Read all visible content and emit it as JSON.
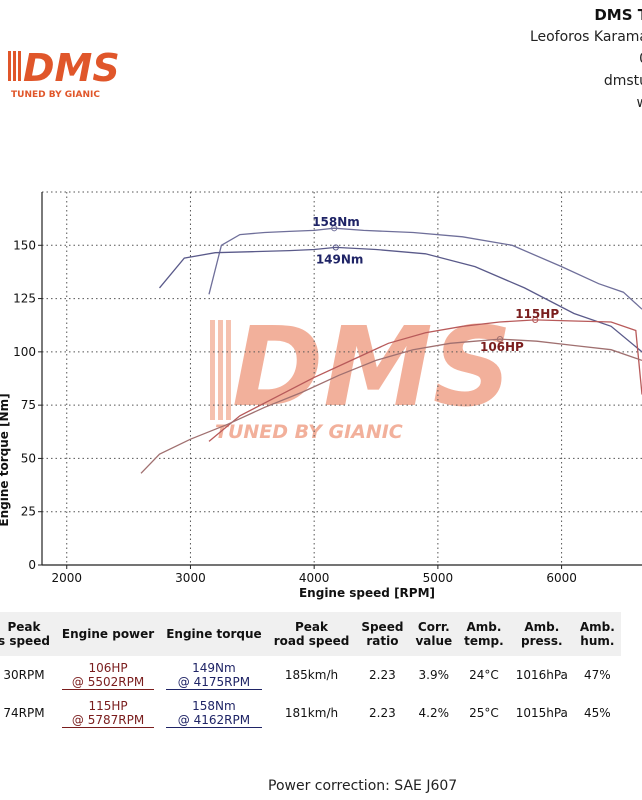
{
  "header": {
    "company_name": "DMS T",
    "lines": [
      "Leoforos Karama",
      "0",
      "dmstu",
      "w"
    ]
  },
  "logo": {
    "text": "DMS",
    "tagline": "TUNED BY GIANIC",
    "color": "#e0562a"
  },
  "watermark": {
    "text": "DMS",
    "tagline": "TUNED BY GIANIC",
    "color": "#f0a38a"
  },
  "chart_data": {
    "type": "line",
    "xlabel": "Engine speed [RPM]",
    "ylabel": "Engine torque [Nm]",
    "xlim": [
      1800,
      6650
    ],
    "ylim": [
      0,
      175
    ],
    "xticks": [
      2000,
      3000,
      4000,
      5000,
      6000
    ],
    "yticks": [
      0,
      25,
      50,
      75,
      100,
      125,
      150
    ],
    "grid": true,
    "series": [
      {
        "kind": "torque",
        "color": "#6f6f9a",
        "peak_label": "158Nm",
        "peak": [
          4162,
          158
        ],
        "points": [
          [
            3150,
            127
          ],
          [
            3250,
            150
          ],
          [
            3400,
            155
          ],
          [
            3600,
            156
          ],
          [
            3800,
            156.5
          ],
          [
            4000,
            157
          ],
          [
            4162,
            158
          ],
          [
            4400,
            157
          ],
          [
            4800,
            156
          ],
          [
            5200,
            154
          ],
          [
            5600,
            150
          ],
          [
            6000,
            140
          ],
          [
            6300,
            132
          ],
          [
            6500,
            128
          ],
          [
            6650,
            120
          ]
        ]
      },
      {
        "kind": "torque",
        "color": "#5a5a8a",
        "peak_label": "149Nm",
        "peak": [
          4175,
          149
        ],
        "points": [
          [
            2750,
            130
          ],
          [
            2950,
            144
          ],
          [
            3200,
            146.5
          ],
          [
            3500,
            147
          ],
          [
            3800,
            147.5
          ],
          [
            4000,
            148
          ],
          [
            4175,
            149
          ],
          [
            4500,
            148
          ],
          [
            4900,
            146
          ],
          [
            5300,
            140
          ],
          [
            5700,
            130
          ],
          [
            6100,
            118
          ],
          [
            6400,
            112
          ],
          [
            6650,
            100
          ]
        ]
      },
      {
        "kind": "power",
        "color": "#b85a5a",
        "peak_label": "115HP",
        "peak": [
          5787,
          115
        ],
        "points": [
          [
            3150,
            58
          ],
          [
            3400,
            70
          ],
          [
            3700,
            79
          ],
          [
            4000,
            88
          ],
          [
            4300,
            96
          ],
          [
            4600,
            104
          ],
          [
            4900,
            109
          ],
          [
            5200,
            112
          ],
          [
            5500,
            114
          ],
          [
            5787,
            115
          ],
          [
            6100,
            114.5
          ],
          [
            6400,
            114
          ],
          [
            6600,
            110
          ],
          [
            6650,
            80
          ]
        ]
      },
      {
        "kind": "power",
        "color": "#a07070",
        "peak_label": "106HP",
        "peak": [
          5502,
          106
        ],
        "points": [
          [
            2600,
            43
          ],
          [
            2750,
            52
          ],
          [
            3000,
            59
          ],
          [
            3300,
            66
          ],
          [
            3600,
            74
          ],
          [
            3900,
            81
          ],
          [
            4200,
            89
          ],
          [
            4500,
            96
          ],
          [
            4800,
            101
          ],
          [
            5100,
            104
          ],
          [
            5300,
            105
          ],
          [
            5502,
            106
          ],
          [
            5800,
            105
          ],
          [
            6100,
            103
          ],
          [
            6400,
            101
          ],
          [
            6650,
            96
          ]
        ]
      }
    ]
  },
  "table": {
    "headers": [
      "Peak\ns speed",
      "Engine power",
      "Engine torque",
      "Peak\nroad speed",
      "Speed\nratio",
      "Corr.\nvalue",
      "Amb.\ntemp.",
      "Amb.\npress.",
      "Amb.\nhum."
    ],
    "rows": [
      [
        "30RPM",
        "106HP\n@ 5502RPM",
        "149Nm\n@ 4175RPM",
        "185km/h",
        "2.23",
        "3.9%",
        "24°C",
        "1016hPa",
        "47%"
      ],
      [
        "74RPM",
        "115HP\n@ 5787RPM",
        "158Nm\n@ 4162RPM",
        "181km/h",
        "2.23",
        "4.2%",
        "25°C",
        "1015hPa",
        "45%"
      ]
    ]
  },
  "footer": {
    "text": "Power correction: SAE J607"
  }
}
